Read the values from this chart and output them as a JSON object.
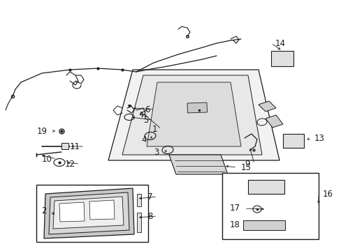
{
  "bg_color": "#ffffff",
  "fig_width": 4.89,
  "fig_height": 3.6,
  "lc": "#1a1a1a",
  "fs_label": 7.5,
  "fs_num": 8.5
}
